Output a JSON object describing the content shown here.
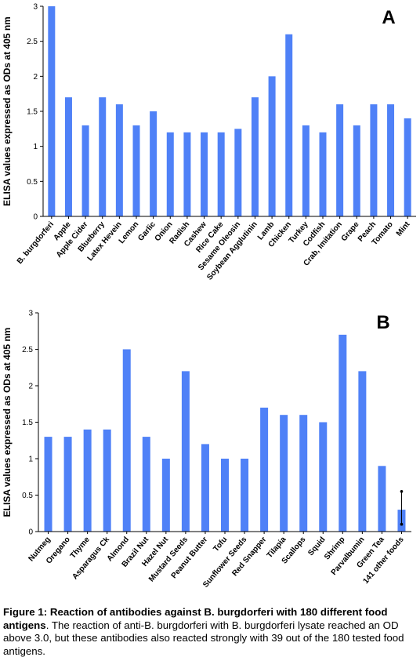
{
  "chart_data": [
    {
      "type": "bar",
      "panel_label": "A",
      "ylabel": "ELISA values expressed as ODs at 405 nm",
      "ylim": [
        0,
        3
      ],
      "yticks": [
        "0",
        "0.5",
        "1",
        "1.5",
        "2",
        "2.5",
        "3"
      ],
      "color": "#4f81f7",
      "categories": [
        "B. burgdorferi",
        "Apple",
        "Apple Cider",
        "Blueberry",
        "Latex Hevein",
        "Lemon",
        "Garlic",
        "Onion",
        "Radish",
        "Cashew",
        "Rice Cake",
        "Sesame Oleosin",
        "Soybean Agglutinin",
        "Lamb",
        "Chicken",
        "Turkey",
        "Codfish",
        "Crab, Imitation",
        "Grape",
        "Peach",
        "Tomato",
        "Mint"
      ],
      "values": [
        3.0,
        1.7,
        1.3,
        1.7,
        1.6,
        1.3,
        1.5,
        1.2,
        1.2,
        1.2,
        1.2,
        1.25,
        1.7,
        2.0,
        2.6,
        1.3,
        1.2,
        1.6,
        1.3,
        1.6,
        1.6,
        1.4
      ]
    },
    {
      "type": "bar",
      "panel_label": "B",
      "ylabel": "ELISA values expressed as ODs at 405 nm",
      "ylim": [
        0,
        3
      ],
      "yticks": [
        "0",
        "0.5",
        "1",
        "1.5",
        "2",
        "2.5",
        "3"
      ],
      "color": "#4f81f7",
      "categories": [
        "Nutmeg",
        "Oregano",
        "Thyme",
        "Asparagus Ck",
        "Almond",
        "Brazil Nut",
        "Hazel Nut",
        "Mustard Seeds",
        "Peanut Butter",
        "Tofu",
        "Sunflower Seeds",
        "Red Snapper",
        "Tilapia",
        "Scallops",
        "Squid",
        "Shrimp",
        "Parvalbumin",
        "Green Tea",
        "141 other foods"
      ],
      "values": [
        1.3,
        1.3,
        1.4,
        1.4,
        2.5,
        1.3,
        1.0,
        2.2,
        1.2,
        1.0,
        1.0,
        1.7,
        1.6,
        1.6,
        1.5,
        2.7,
        2.2,
        0.9,
        0.3
      ],
      "error_bar": {
        "category": "141 other foods",
        "low": 0.1,
        "high": 0.55
      }
    }
  ],
  "caption": {
    "title": "Figure 1: Reaction of antibodies against B. burgdorferi with 180 different food antigens",
    "body": ". The reaction of anti-B. burgdorferi with B. burgdorferi lysate reached an OD above 3.0, but these antibodies also reacted strongly with 39 out of the 180 tested food antigens."
  }
}
